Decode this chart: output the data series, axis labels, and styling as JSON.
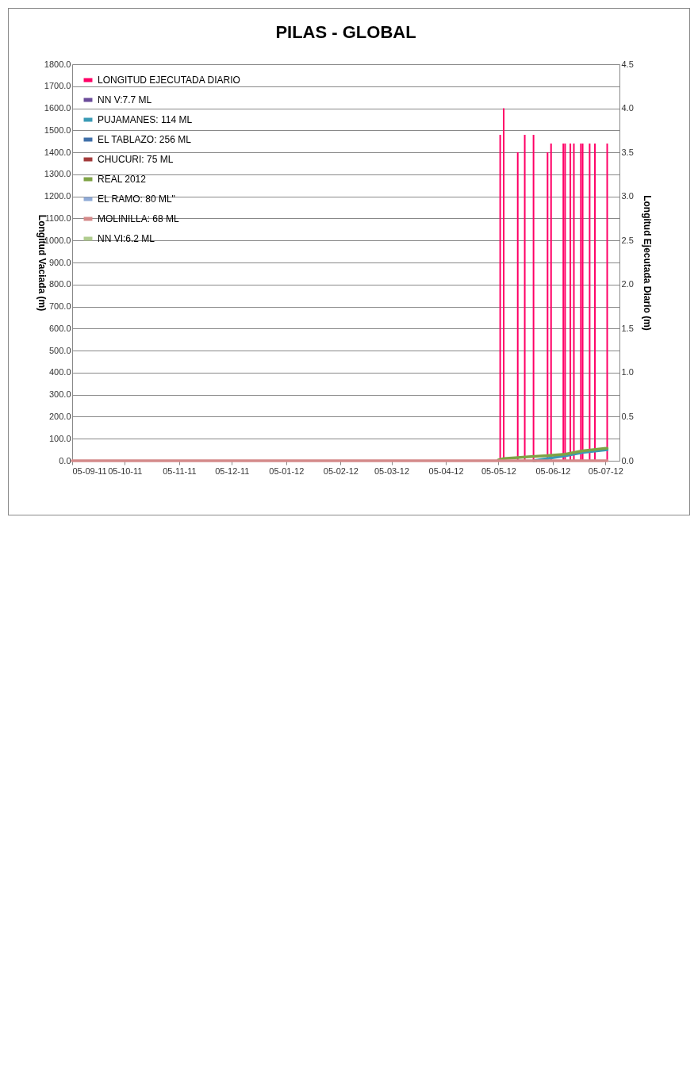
{
  "chart_data": {
    "type": "line",
    "title": "PILAS - GLOBAL",
    "ylabel": "Longitud Vaciada  (m)",
    "y2label": "Longitud  Ejecutada Diario (m)",
    "xlim": [
      "2011-09-05",
      "2012-07-13"
    ],
    "xticks": [
      {
        "value": "2011-09-05",
        "label": "05-09-11"
      },
      {
        "value": "2011-10-05",
        "label": "05-10-11"
      },
      {
        "value": "2011-11-05",
        "label": "05-11-11"
      },
      {
        "value": "2011-12-05",
        "label": "05-12-11"
      },
      {
        "value": "2012-01-05",
        "label": "05-01-12"
      },
      {
        "value": "2012-02-05",
        "label": "05-02-12"
      },
      {
        "value": "2012-03-05",
        "label": "05-03-12"
      },
      {
        "value": "2012-04-05",
        "label": "05-04-12"
      },
      {
        "value": "2012-05-05",
        "label": "05-05-12"
      },
      {
        "value": "2012-06-05",
        "label": "05-06-12"
      },
      {
        "value": "2012-07-05",
        "label": "05-07-12"
      }
    ],
    "ylim": [
      0,
      1800
    ],
    "yticks": [
      {
        "value": 0,
        "label": "0.0"
      },
      {
        "value": 100,
        "label": "100.0"
      },
      {
        "value": 200,
        "label": "200.0"
      },
      {
        "value": 300,
        "label": "300.0"
      },
      {
        "value": 400,
        "label": "400.0"
      },
      {
        "value": 500,
        "label": "500.0"
      },
      {
        "value": 600,
        "label": "600.0"
      },
      {
        "value": 700,
        "label": "700.0"
      },
      {
        "value": 800,
        "label": "800.0"
      },
      {
        "value": 900,
        "label": "900.0"
      },
      {
        "value": 1000,
        "label": "1000.0"
      },
      {
        "value": 1100,
        "label": "1100.0"
      },
      {
        "value": 1200,
        "label": "1200.0"
      },
      {
        "value": 1300,
        "label": "1300.0"
      },
      {
        "value": 1400,
        "label": "1400.0"
      },
      {
        "value": 1500,
        "label": "1500.0"
      },
      {
        "value": 1600,
        "label": "1600.0"
      },
      {
        "value": 1700,
        "label": "1700.0"
      },
      {
        "value": 1800,
        "label": "1800.0"
      }
    ],
    "y2lim": [
      0,
      4.5
    ],
    "y2ticks": [
      {
        "value": 0,
        "label": "0.0"
      },
      {
        "value": 0.5,
        "label": "0.5"
      },
      {
        "value": 1,
        "label": "1.0"
      },
      {
        "value": 1.5,
        "label": "1.5"
      },
      {
        "value": 2,
        "label": "2.0"
      },
      {
        "value": 2.5,
        "label": "2.5"
      },
      {
        "value": 3,
        "label": "3.0"
      },
      {
        "value": 3.5,
        "label": "3.5"
      },
      {
        "value": 4,
        "label": "4.0"
      },
      {
        "value": 4.5,
        "label": "4.5"
      }
    ],
    "grid": "y",
    "legend": "top left",
    "series": [
      {
        "name": "LONGITUD EJECUTADA DIARIO",
        "type": "bar",
        "axis": "y2",
        "color": "#ff0066",
        "x": [
          "2012-05-06",
          "2012-05-08",
          "2012-05-16",
          "2012-05-20",
          "2012-05-25",
          "2012-06-02",
          "2012-06-04",
          "2012-06-11",
          "2012-06-12",
          "2012-06-15",
          "2012-06-17",
          "2012-06-21",
          "2012-06-22",
          "2012-06-26",
          "2012-06-29",
          "2012-07-06"
        ],
        "values": [
          3.7,
          4.0,
          3.5,
          3.7,
          3.7,
          3.5,
          3.6,
          3.6,
          3.6,
          3.6,
          3.6,
          3.6,
          3.6,
          3.6,
          3.6,
          3.6
        ]
      },
      {
        "name": "NN V:7.7 ML",
        "color": "#6b4c9a"
      },
      {
        "name": "PUJAMANES: 114 ML",
        "color": "#3a9ab5",
        "x": [
          "2012-05-25",
          "2012-06-06",
          "2012-06-12",
          "2012-06-22",
          "2012-07-06"
        ],
        "values": [
          0,
          15,
          22,
          38,
          50
        ]
      },
      {
        "name": "EL TABLAZO: 256 ML",
        "color": "#3f6fa8"
      },
      {
        "name": "CHUCURI: 75  ML",
        "color": "#a33a3a"
      },
      {
        "name": "REAL 2012",
        "color": "#7ea345",
        "x": [
          "2012-05-05",
          "2012-05-08",
          "2012-05-16",
          "2012-05-22",
          "2012-06-02",
          "2012-06-12",
          "2012-06-22",
          "2012-07-06"
        ],
        "values": [
          4,
          10,
          14,
          18,
          23,
          30,
          45,
          57
        ]
      },
      {
        "name": "EL RAMO: 80 ML\"",
        "color": "#8faad6"
      },
      {
        "name": "MOLINILLA: 68 ML",
        "color": "#d48a8a",
        "x": [
          "2011-09-05",
          "2012-07-06"
        ],
        "values": [
          0,
          0
        ]
      },
      {
        "name": "NN VI:6.2 ML",
        "color": "#b0cc8f"
      }
    ]
  }
}
